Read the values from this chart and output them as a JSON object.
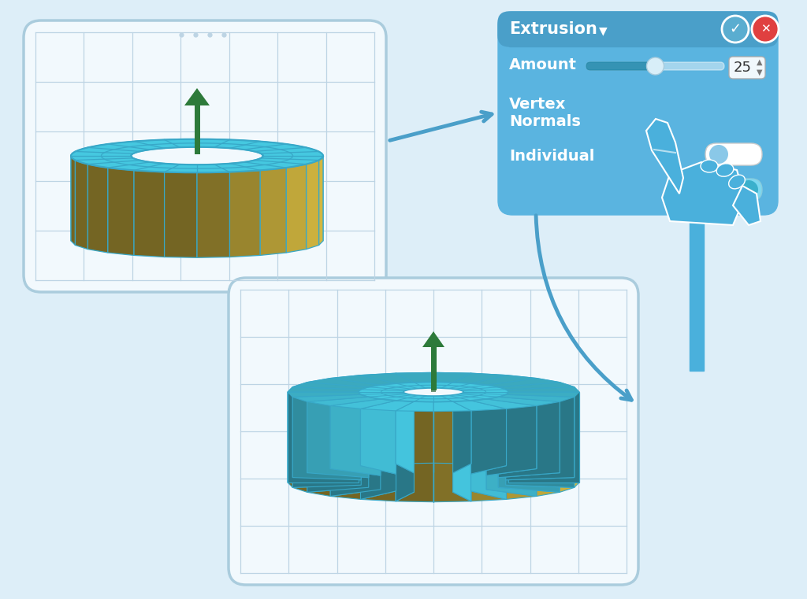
{
  "bg_color": "#ddeef8",
  "panel_color": "#5ab4e0",
  "panel_header_color": "#4a9fc9",
  "panel_text_color": "#ffffff",
  "panel_title": "Extrusion",
  "panel_amount_label": "Amount",
  "panel_vertex_label": "Vertex\nNormals",
  "panel_individual_label": "Individual",
  "panel_value": "25",
  "toggle_off_color": "#ffffff",
  "toggle_on_color": "#7dd8f0",
  "slider_track_color": "#ffffff",
  "cylinder_top_color": "#45c8e0",
  "cylinder_side_color": "#d4b840",
  "cylinder_edge_color": "#38a8c8",
  "gear_top_color": "#45c8e0",
  "gear_side_color": "#d4b840",
  "gear_edge_color": "#38a8c8",
  "arrow_color": "#4a9fc9",
  "hand_color": "#4ab0dc",
  "green_arrow_color": "#2d7a3a",
  "green_arrow_dark": "#1a5226",
  "grid_color": "#bdd4e4",
  "viewport_bg": "#f2f9fd",
  "viewport_border": "#aaccdd",
  "check_color": "#5aadd0",
  "x_color": "#e04040",
  "connector_line_color": "#4a9fc9"
}
